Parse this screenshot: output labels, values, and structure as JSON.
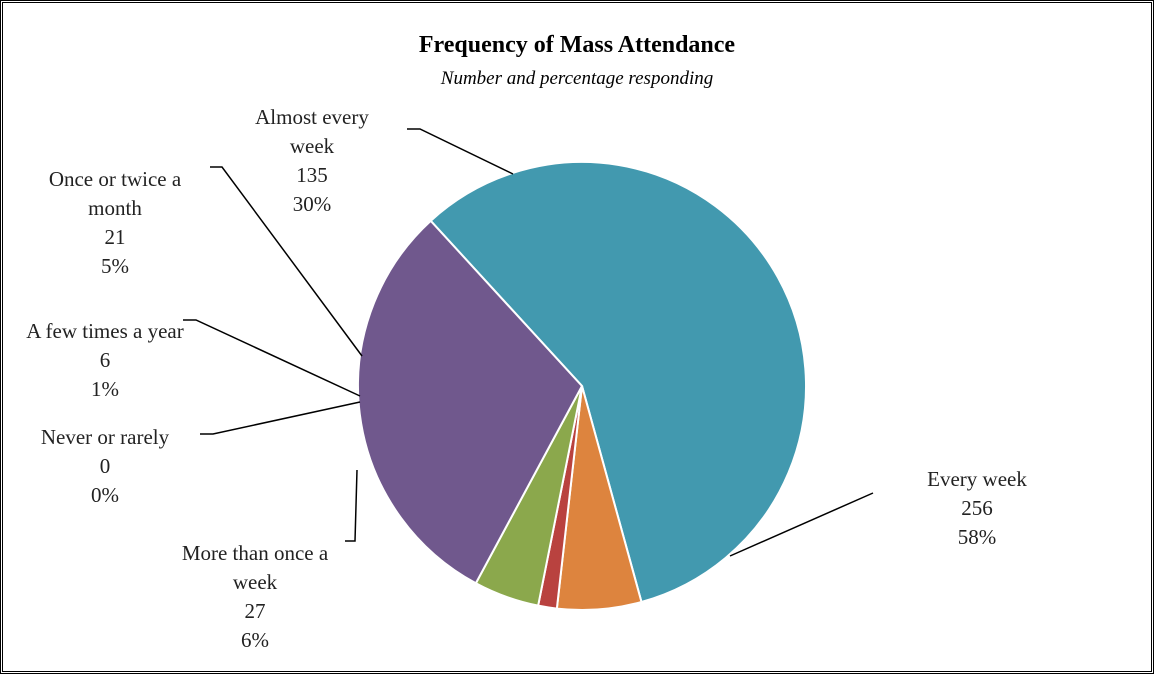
{
  "chart_data": {
    "type": "pie",
    "title": "Frequency of Mass Attendance",
    "subtitle": "Number and percentage responding",
    "slices": [
      {
        "label": [
          "Every week"
        ],
        "count": "256",
        "percent": "58%",
        "value": 256,
        "color": "#4299AF"
      },
      {
        "label": [
          "More than once a",
          "week"
        ],
        "count": "27",
        "percent": "6%",
        "value": 27,
        "color": "#DD843E"
      },
      {
        "label": [
          "Never or rarely"
        ],
        "count": "0",
        "percent": "0%",
        "value": 0,
        "color": "#4F81BD"
      },
      {
        "label": [
          "A few times a year"
        ],
        "count": "6",
        "percent": "1%",
        "value": 6,
        "color": "#B9423F"
      },
      {
        "label": [
          "Once or twice a",
          "month"
        ],
        "count": "21",
        "percent": "5%",
        "value": 21,
        "color": "#8BA84C"
      },
      {
        "label": [
          "Almost every",
          "week"
        ],
        "count": "135",
        "percent": "30%",
        "value": 135,
        "color": "#70588D"
      }
    ]
  }
}
